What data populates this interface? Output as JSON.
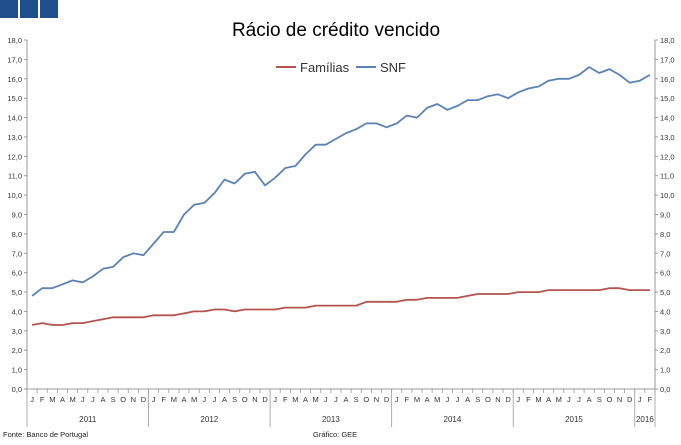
{
  "logo": {
    "color": "#1f4e8c",
    "squares": 3
  },
  "footer": {
    "source": "Fonte: Banco de Portugal",
    "credit": "Gráfico: GEE"
  },
  "chart_data": {
    "type": "line",
    "title": "Rácio de crédito vencido",
    "xlabel": "",
    "ylabel": "",
    "ylim": [
      0,
      18
    ],
    "yticks": [
      "0,0",
      "1,0",
      "2,0",
      "3,0",
      "4,0",
      "5,0",
      "6,0",
      "7,0",
      "8,0",
      "9,0",
      "10,0",
      "11,0",
      "12,0",
      "13,0",
      "14,0",
      "15,0",
      "16,0",
      "17,0",
      "18,0"
    ],
    "month_labels": [
      "J",
      "F",
      "M",
      "A",
      "M",
      "J",
      "J",
      "A",
      "S",
      "O",
      "N",
      "D",
      "J",
      "F",
      "M",
      "A",
      "M",
      "J",
      "J",
      "A",
      "S",
      "O",
      "N",
      "D",
      "J",
      "F",
      "M",
      "A",
      "M",
      "J",
      "J",
      "A",
      "S",
      "O",
      "N",
      "D",
      "J",
      "F",
      "M",
      "A",
      "M",
      "J",
      "J",
      "A",
      "S",
      "O",
      "N",
      "D",
      "J",
      "F",
      "M",
      "A",
      "M",
      "J",
      "J",
      "A",
      "S",
      "O",
      "N",
      "D",
      "J",
      "F"
    ],
    "years": [
      {
        "label": "2011",
        "months": 12
      },
      {
        "label": "2012",
        "months": 12
      },
      {
        "label": "2013",
        "months": 12
      },
      {
        "label": "2014",
        "months": 12
      },
      {
        "label": "2015",
        "months": 12
      },
      {
        "label": "2016",
        "months": 2
      }
    ],
    "legend_position": "top-center",
    "grid": false,
    "series": [
      {
        "name": "Famílias",
        "color": "#b5534e",
        "values": [
          3.3,
          3.4,
          3.3,
          3.3,
          3.4,
          3.4,
          3.5,
          3.6,
          3.7,
          3.7,
          3.7,
          3.7,
          3.8,
          3.8,
          3.8,
          3.9,
          4.0,
          4.0,
          4.1,
          4.1,
          4.0,
          4.1,
          4.1,
          4.1,
          4.1,
          4.2,
          4.2,
          4.2,
          4.3,
          4.3,
          4.3,
          4.3,
          4.3,
          4.5,
          4.5,
          4.5,
          4.5,
          4.6,
          4.6,
          4.7,
          4.7,
          4.7,
          4.7,
          4.8,
          4.9,
          4.9,
          4.9,
          4.9,
          5.0,
          5.0,
          5.0,
          5.1,
          5.1,
          5.1,
          5.1,
          5.1,
          5.1,
          5.2,
          5.2,
          5.1,
          5.1,
          5.1
        ]
      },
      {
        "name": "SNF",
        "color": "#5b82b4",
        "values": [
          4.8,
          5.2,
          5.2,
          5.4,
          5.6,
          5.5,
          5.8,
          6.2,
          6.3,
          6.8,
          7.0,
          6.9,
          7.5,
          8.1,
          8.1,
          9.0,
          9.5,
          9.6,
          10.1,
          10.8,
          10.6,
          11.1,
          11.2,
          10.5,
          10.9,
          11.4,
          11.5,
          12.1,
          12.6,
          12.6,
          12.9,
          13.2,
          13.4,
          13.7,
          13.7,
          13.5,
          13.7,
          14.1,
          14.0,
          14.5,
          14.7,
          14.4,
          14.6,
          14.9,
          14.9,
          15.1,
          15.2,
          15.0,
          15.3,
          15.5,
          15.6,
          15.9,
          16.0,
          16.0,
          16.2,
          16.6,
          16.3,
          16.5,
          16.2,
          15.8,
          15.9,
          16.2
        ]
      }
    ]
  }
}
